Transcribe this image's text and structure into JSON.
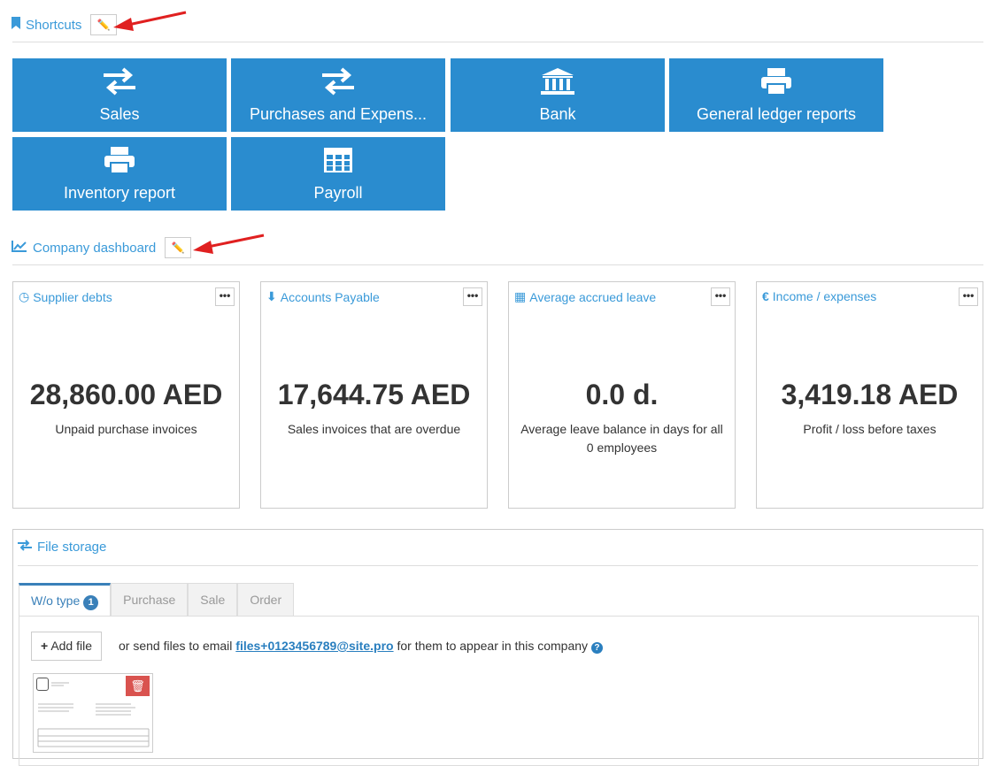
{
  "shortcuts": {
    "title": "Shortcuts",
    "tiles": [
      {
        "label": "Sales",
        "icon": "exchange-icon"
      },
      {
        "label": "Purchases and Expens...",
        "icon": "exchange-icon"
      },
      {
        "label": "Bank",
        "icon": "bank-icon"
      },
      {
        "label": "General ledger reports",
        "icon": "print-icon"
      },
      {
        "label": "Inventory report",
        "icon": "print-icon"
      },
      {
        "label": "Payroll",
        "icon": "table-icon"
      }
    ]
  },
  "dashboard": {
    "title": "Company dashboard",
    "cards": [
      {
        "title": "Supplier debts",
        "icon": "clock-icon",
        "value": "28,860.00 AED",
        "sub": "Unpaid purchase invoices"
      },
      {
        "title": "Accounts Payable",
        "icon": "arrow-circle-down-icon",
        "value": "17,644.75 AED",
        "sub": "Sales invoices that are overdue"
      },
      {
        "title": "Average accrued leave",
        "icon": "table-icon",
        "value": "0.0 d.",
        "sub": "Average leave balance in days for all 0 employees"
      },
      {
        "title": "Income / expenses",
        "icon": "euro-icon",
        "value": "3,419.18 AED",
        "sub": "Profit / loss before taxes"
      }
    ]
  },
  "file_storage": {
    "title": "File storage",
    "tabs": [
      {
        "label": "W/o type",
        "badge": "1"
      },
      {
        "label": "Purchase"
      },
      {
        "label": "Sale"
      },
      {
        "label": "Order"
      }
    ],
    "add_file": "Add file",
    "hint_before": "or send files to email",
    "email": "files+0123456789@site.pro",
    "hint_after": "for them to appear in this company"
  },
  "colors": {
    "accent": "#2a8ccf",
    "link": "#3a9ad9",
    "delete": "#d9534f",
    "annotation_arrow": "#e02020"
  }
}
